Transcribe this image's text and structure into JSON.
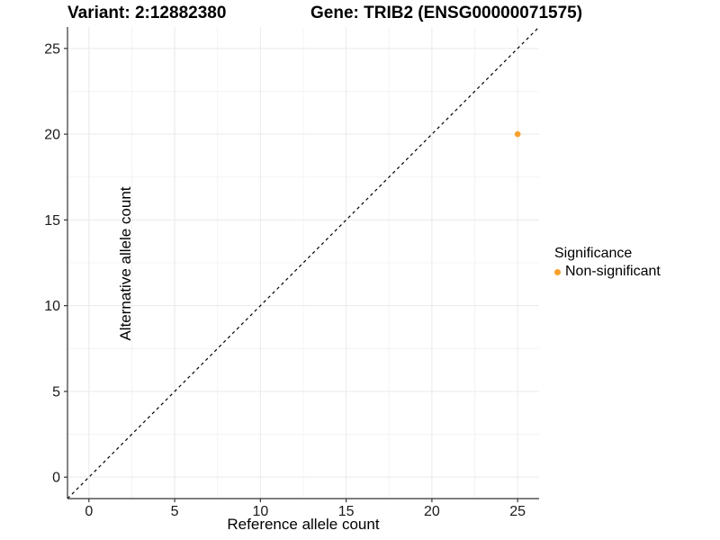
{
  "chart_data": {
    "type": "scatter",
    "title_variant": "Variant: 2:12882380",
    "title_gene": "Gene: TRIB2 (ENSG00000071575)",
    "xlabel": "Reference allele count",
    "ylabel": "Alternative allele count",
    "xlim": [
      -1.25,
      26.25
    ],
    "ylim": [
      -1.25,
      26.25
    ],
    "x_ticks": [
      0,
      5,
      10,
      15,
      20,
      25
    ],
    "y_ticks": [
      0,
      5,
      10,
      15,
      20,
      25
    ],
    "x_minor_gridlines": [
      2.5,
      7.5,
      12.5,
      17.5,
      22.5
    ],
    "y_minor_gridlines": [
      2.5,
      7.5,
      12.5,
      17.5,
      22.5
    ],
    "grid": true,
    "points": [
      {
        "x": 25,
        "y": 20,
        "series": "Non-significant"
      }
    ],
    "identity_line": {
      "type": "dashed",
      "from": [
        -1.25,
        -1.25
      ],
      "to": [
        26.25,
        26.25
      ]
    },
    "legend": {
      "title": "Significance",
      "position": "right",
      "items": [
        {
          "label": "Non-significant",
          "color": "#F9A12C"
        }
      ]
    },
    "colors": {
      "point": "#F9A12C",
      "grid_major": "#E9E9E9",
      "grid_minor": "#F4F4F4",
      "axis_line": "#333333",
      "tick_label": "#1a1a1a",
      "dashed_line": "#000000",
      "background": "#FFFFFF"
    }
  }
}
